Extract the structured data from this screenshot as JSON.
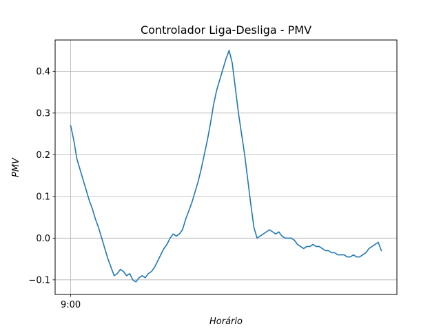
{
  "chart_data": {
    "type": "line",
    "title": "Controlador Liga-Desliga - PMV",
    "xlabel": "Horário",
    "ylabel": "PMV",
    "x_ticks": [
      "9:00"
    ],
    "ylim": [
      -0.135,
      0.475
    ],
    "y_ticks": [
      -0.1,
      0.0,
      0.1,
      0.2,
      0.3,
      0.4
    ],
    "y_tick_labels": [
      "−0.1",
      "0.0",
      "0.1",
      "0.2",
      "0.3",
      "0.4"
    ],
    "grid": true,
    "color": "#1f77b4",
    "xlim": [
      -5,
      105
    ],
    "series": [
      {
        "values": [
          0.27,
          0.235,
          0.19,
          0.165,
          0.14,
          0.115,
          0.09,
          0.07,
          0.045,
          0.025,
          0.0,
          -0.025,
          -0.05,
          -0.07,
          -0.09,
          -0.085,
          -0.075,
          -0.08,
          -0.09,
          -0.085,
          -0.1,
          -0.105,
          -0.095,
          -0.09,
          -0.095,
          -0.085,
          -0.08,
          -0.07,
          -0.055,
          -0.04,
          -0.025,
          -0.015,
          0.0,
          0.01,
          0.005,
          0.01,
          0.02,
          0.045,
          0.065,
          0.085,
          0.11,
          0.135,
          0.165,
          0.2,
          0.235,
          0.275,
          0.32,
          0.355,
          0.38,
          0.405,
          0.43,
          0.45,
          0.42,
          0.36,
          0.3,
          0.25,
          0.2,
          0.14,
          0.08,
          0.025,
          0.0,
          0.005,
          0.01,
          0.015,
          0.02,
          0.015,
          0.01,
          0.015,
          0.005,
          0.0,
          0.0,
          0.0,
          -0.005,
          -0.015,
          -0.02,
          -0.025,
          -0.02,
          -0.02,
          -0.015,
          -0.02,
          -0.02,
          -0.025,
          -0.03,
          -0.03,
          -0.035,
          -0.035,
          -0.04,
          -0.04,
          -0.04,
          -0.045,
          -0.045,
          -0.04,
          -0.045,
          -0.045,
          -0.04,
          -0.035,
          -0.025,
          -0.02,
          -0.015,
          -0.01,
          -0.03
        ]
      }
    ]
  }
}
